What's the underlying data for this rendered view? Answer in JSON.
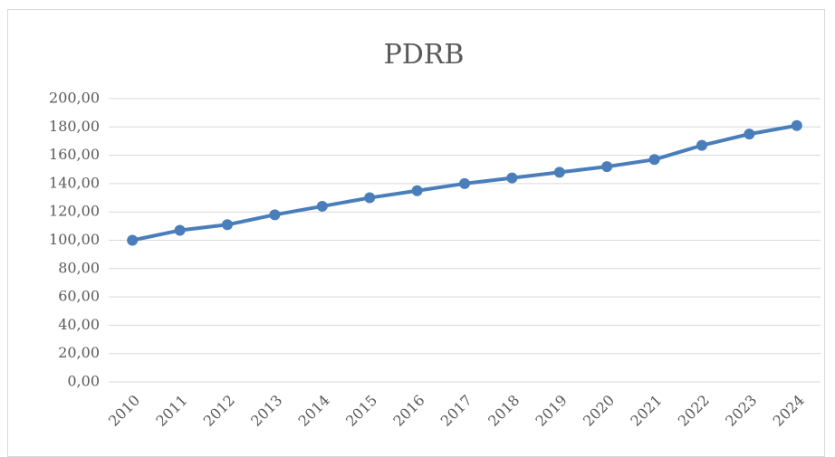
{
  "chart_data": {
    "type": "line",
    "title": "PDRB",
    "categories": [
      "2010",
      "2011",
      "2012",
      "2013",
      "2014",
      "2015",
      "2016",
      "2017",
      "2018",
      "2019",
      "2020",
      "2021",
      "2022",
      "2023",
      "2024"
    ],
    "values": [
      100,
      107,
      111,
      118,
      124,
      130,
      135,
      140,
      144,
      148,
      152,
      157,
      167,
      175,
      181
    ],
    "color": "#4a7ebb",
    "ylim": [
      0,
      200
    ],
    "yticks": [
      {
        "value": 0,
        "label": "0,00"
      },
      {
        "value": 20,
        "label": "20,00"
      },
      {
        "value": 40,
        "label": "40,00"
      },
      {
        "value": 60,
        "label": "60,00"
      },
      {
        "value": 80,
        "label": "80,00"
      },
      {
        "value": 100,
        "label": "100,00"
      },
      {
        "value": 120,
        "label": "120,00"
      },
      {
        "value": 140,
        "label": "140,00"
      },
      {
        "value": 160,
        "label": "160,00"
      },
      {
        "value": 180,
        "label": "180,00"
      },
      {
        "value": 200,
        "label": "200,00"
      }
    ],
    "grid": true
  }
}
